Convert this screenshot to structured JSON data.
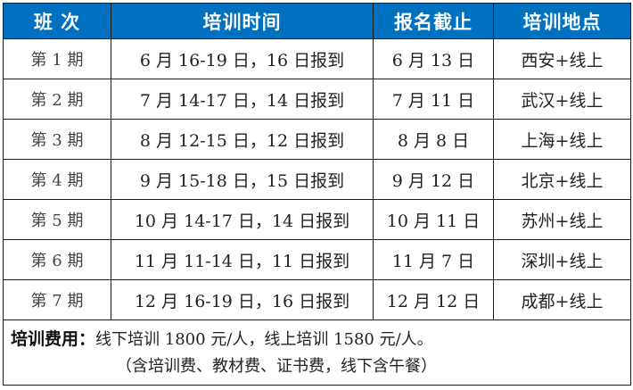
{
  "colors": {
    "header_bg": "#0070C0",
    "header_text": "#FFFFFF"
  },
  "headers": [
    "班 次",
    "培训时间",
    "报名截止",
    "培训地点"
  ],
  "rows": [
    [
      "第 1 期",
      "6 月 16-19 日，16 日报到",
      "6 月 13 日",
      "西安+线上"
    ],
    [
      "第 2 期",
      "7 月 14-17 日，14 日报到",
      "7 月 11 日",
      "武汉+线上"
    ],
    [
      "第 3 期",
      "8 月 12-15 日，12 日报到",
      "8 月 8 日",
      "上海+线上"
    ],
    [
      "第 4 期",
      "9 月 15-18 日，15 日报到",
      "9 月 12 日",
      "北京+线上"
    ],
    [
      "第 5 期",
      "10 月 14-17 日，14 日报到",
      "10 月 11 日",
      "苏州+线上"
    ],
    [
      "第 6 期",
      "11 月 11-14 日，11 日报到",
      "11 月 7 日",
      "深圳+线上"
    ],
    [
      "第 7 期",
      "12 月 16-19 日，16 日报到",
      "12 月 12 日",
      "成都+线上"
    ]
  ],
  "footer": {
    "label": "培训费用：",
    "text": "线下培训 1800 元/人，线上培训 1580 元/人。",
    "note": "（含培训费、教材费、证书费，线下含午餐）"
  }
}
